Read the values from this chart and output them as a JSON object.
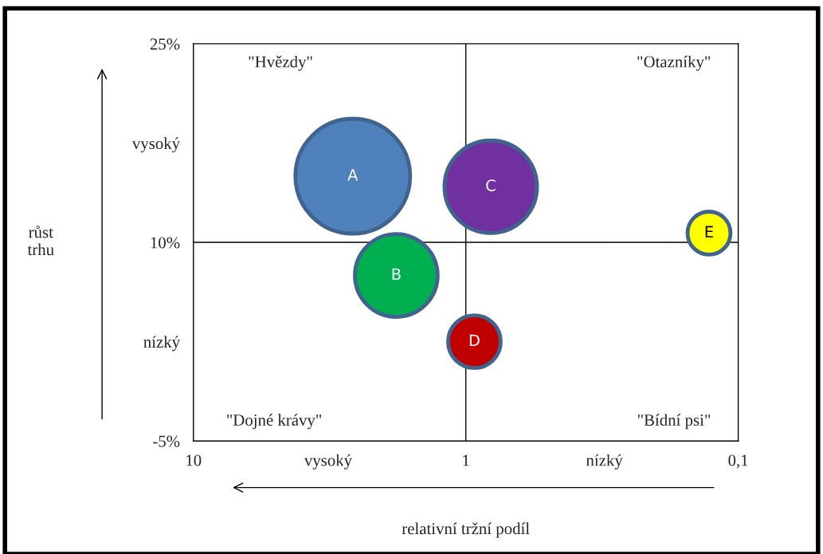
{
  "chart_data": {
    "type": "bubble",
    "xlabel": "relativní tržní podíl",
    "ylabel": "růst trhu",
    "log": "x",
    "xlim": [
      10,
      0.1
    ],
    "xticks": [
      10,
      {
        "value": 3.2,
        "label": "vysoký"
      },
      1,
      {
        "value": 0.31,
        "label": "nízký"
      },
      {
        "value": 0.1,
        "label": "0,1"
      }
    ],
    "ylim": [
      -5,
      25
    ],
    "yticks": [
      {
        "value": -5,
        "label": "-5%"
      },
      {
        "value": 2.5,
        "label": "nízký"
      },
      {
        "value": 10,
        "label": "10%"
      },
      {
        "value": 17.5,
        "label": "vysoký"
      },
      {
        "value": 25,
        "label": "25%"
      }
    ],
    "grid": false,
    "legend": false,
    "marker": "circle",
    "ref_lines": [
      {
        "axis": "x",
        "value": 1,
        "color": "#000000"
      },
      {
        "axis": "y",
        "value": 10,
        "color": "#000000"
      }
    ],
    "annotations": [
      "\"Hvězdy\"",
      "\"Otazníky\"",
      "\"Dojné krávy\"",
      "\"Bídní psi\""
    ],
    "series": [
      {
        "name": "A",
        "color": "#4f81bd",
        "x": [
          2.6
        ],
        "values": [
          15
        ],
        "sizes": [
          1
        ]
      },
      {
        "name": "B",
        "color": "#00b050",
        "x": [
          1.8
        ],
        "values": [
          7.5
        ],
        "sizes": [
          0.52
        ]
      },
      {
        "name": "C",
        "color": "#7030a0",
        "x": [
          0.81
        ],
        "values": [
          14.2
        ],
        "sizes": [
          0.65
        ]
      },
      {
        "name": "D",
        "color": "#c00000",
        "x": [
          0.93
        ],
        "values": [
          2.5
        ],
        "sizes": [
          0.21
        ]
      },
      {
        "name": "E",
        "color": "#ffff00",
        "x": [
          0.128
        ],
        "values": [
          10.7
        ],
        "sizes": [
          0.14
        ]
      }
    ]
  }
}
